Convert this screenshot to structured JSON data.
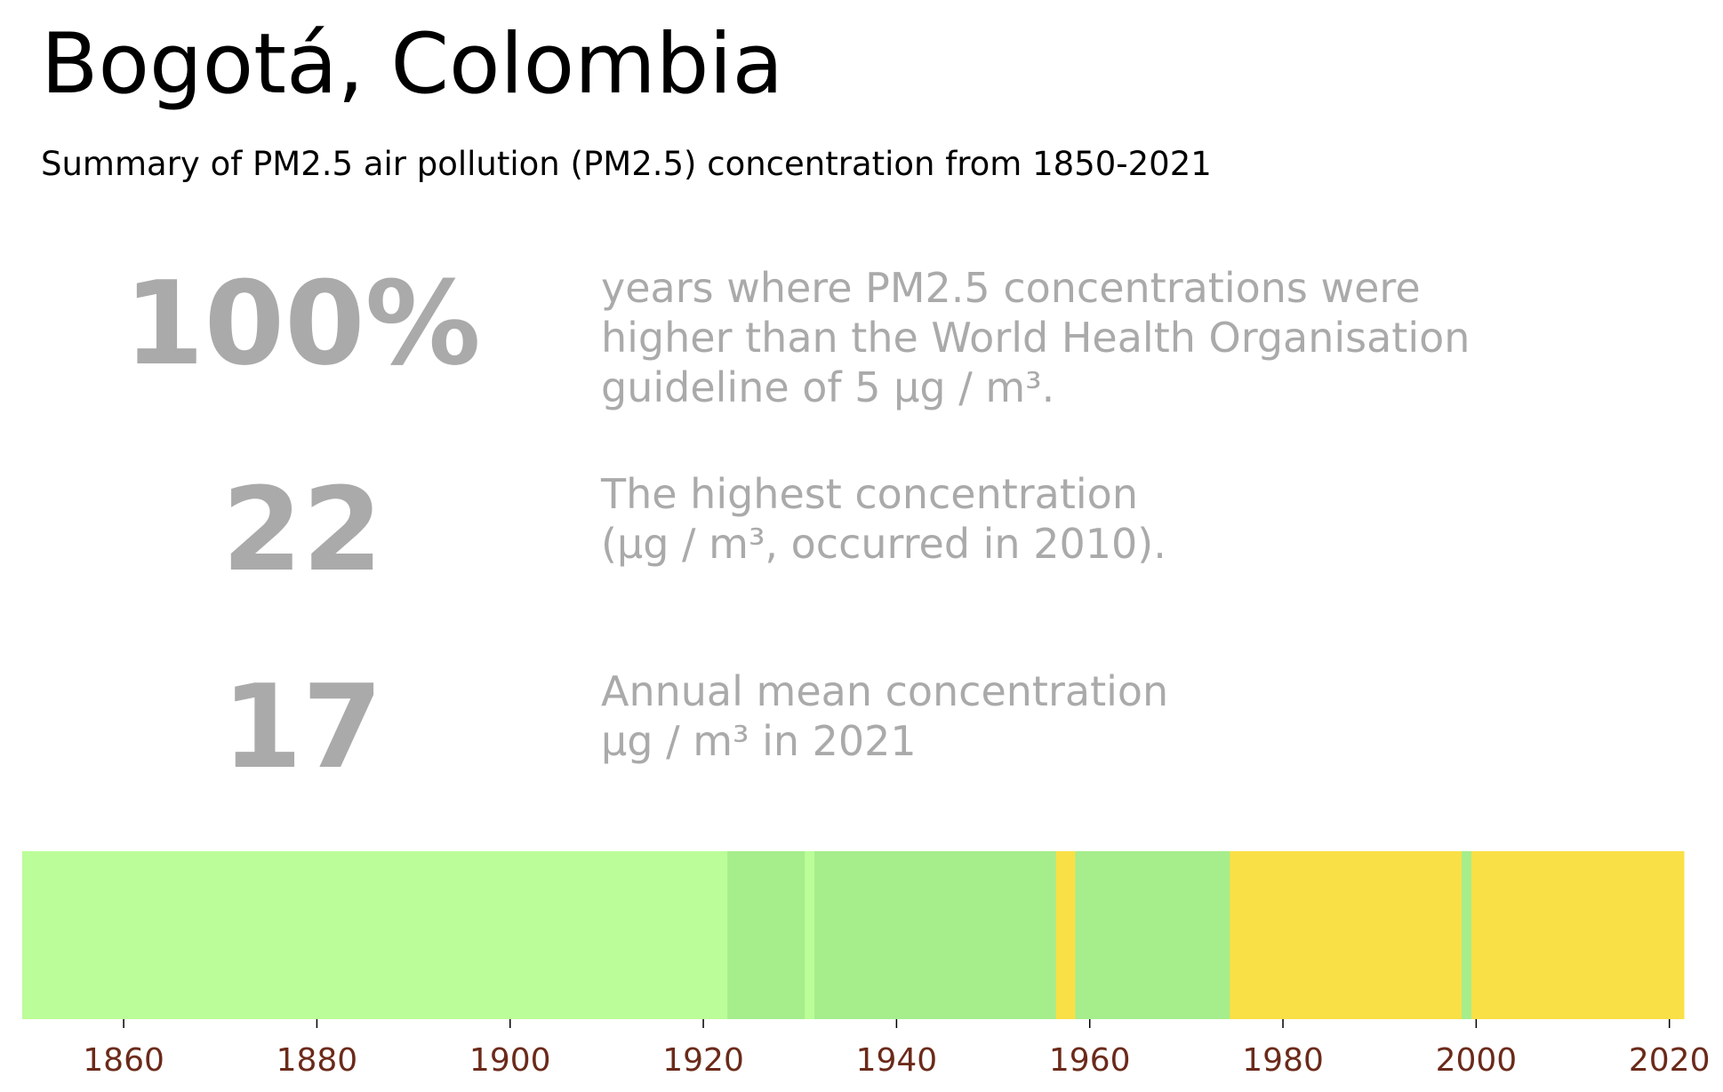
{
  "header": {
    "title": "Bogotá, Colombia",
    "subtitle": "Summary of PM2.5 air pollution (PM2.5) concentration from 1850-2021"
  },
  "stats": [
    {
      "value": "100%",
      "lines": [
        "years where PM2.5 concentrations were",
        "higher than the World Health Organisation",
        "guideline of 5 µg / m³."
      ]
    },
    {
      "value": "22",
      "lines": [
        "The highest concentration",
        "(µg / m³, occurred in 2010)."
      ]
    },
    {
      "value": "17",
      "lines": [
        "Annual mean concentration",
        "µg / m³ in 2021"
      ]
    }
  ],
  "chart_data": {
    "type": "heatmap",
    "description_note": "",
    "x_range": [
      1850,
      2021
    ],
    "xticks": [
      1860,
      1880,
      1900,
      1920,
      1940,
      1960,
      1980,
      2000,
      2020
    ],
    "segments": [
      {
        "start": 1850,
        "end": 1922,
        "color": "#bbfd98"
      },
      {
        "start": 1923,
        "end": 1930,
        "color": "#a6ed8c"
      },
      {
        "start": 1931,
        "end": 1931,
        "color": "#bbfd98"
      },
      {
        "start": 1932,
        "end": 1956,
        "color": "#a6ed8c"
      },
      {
        "start": 1957,
        "end": 1958,
        "color": "#f9e046"
      },
      {
        "start": 1959,
        "end": 1974,
        "color": "#a6ed8c"
      },
      {
        "start": 1975,
        "end": 1998,
        "color": "#f9e046"
      },
      {
        "start": 1999,
        "end": 1999,
        "color": "#a6ed8c"
      },
      {
        "start": 2000,
        "end": 2021,
        "color": "#f9e046"
      }
    ],
    "tick_color": "#6b2a1a"
  }
}
